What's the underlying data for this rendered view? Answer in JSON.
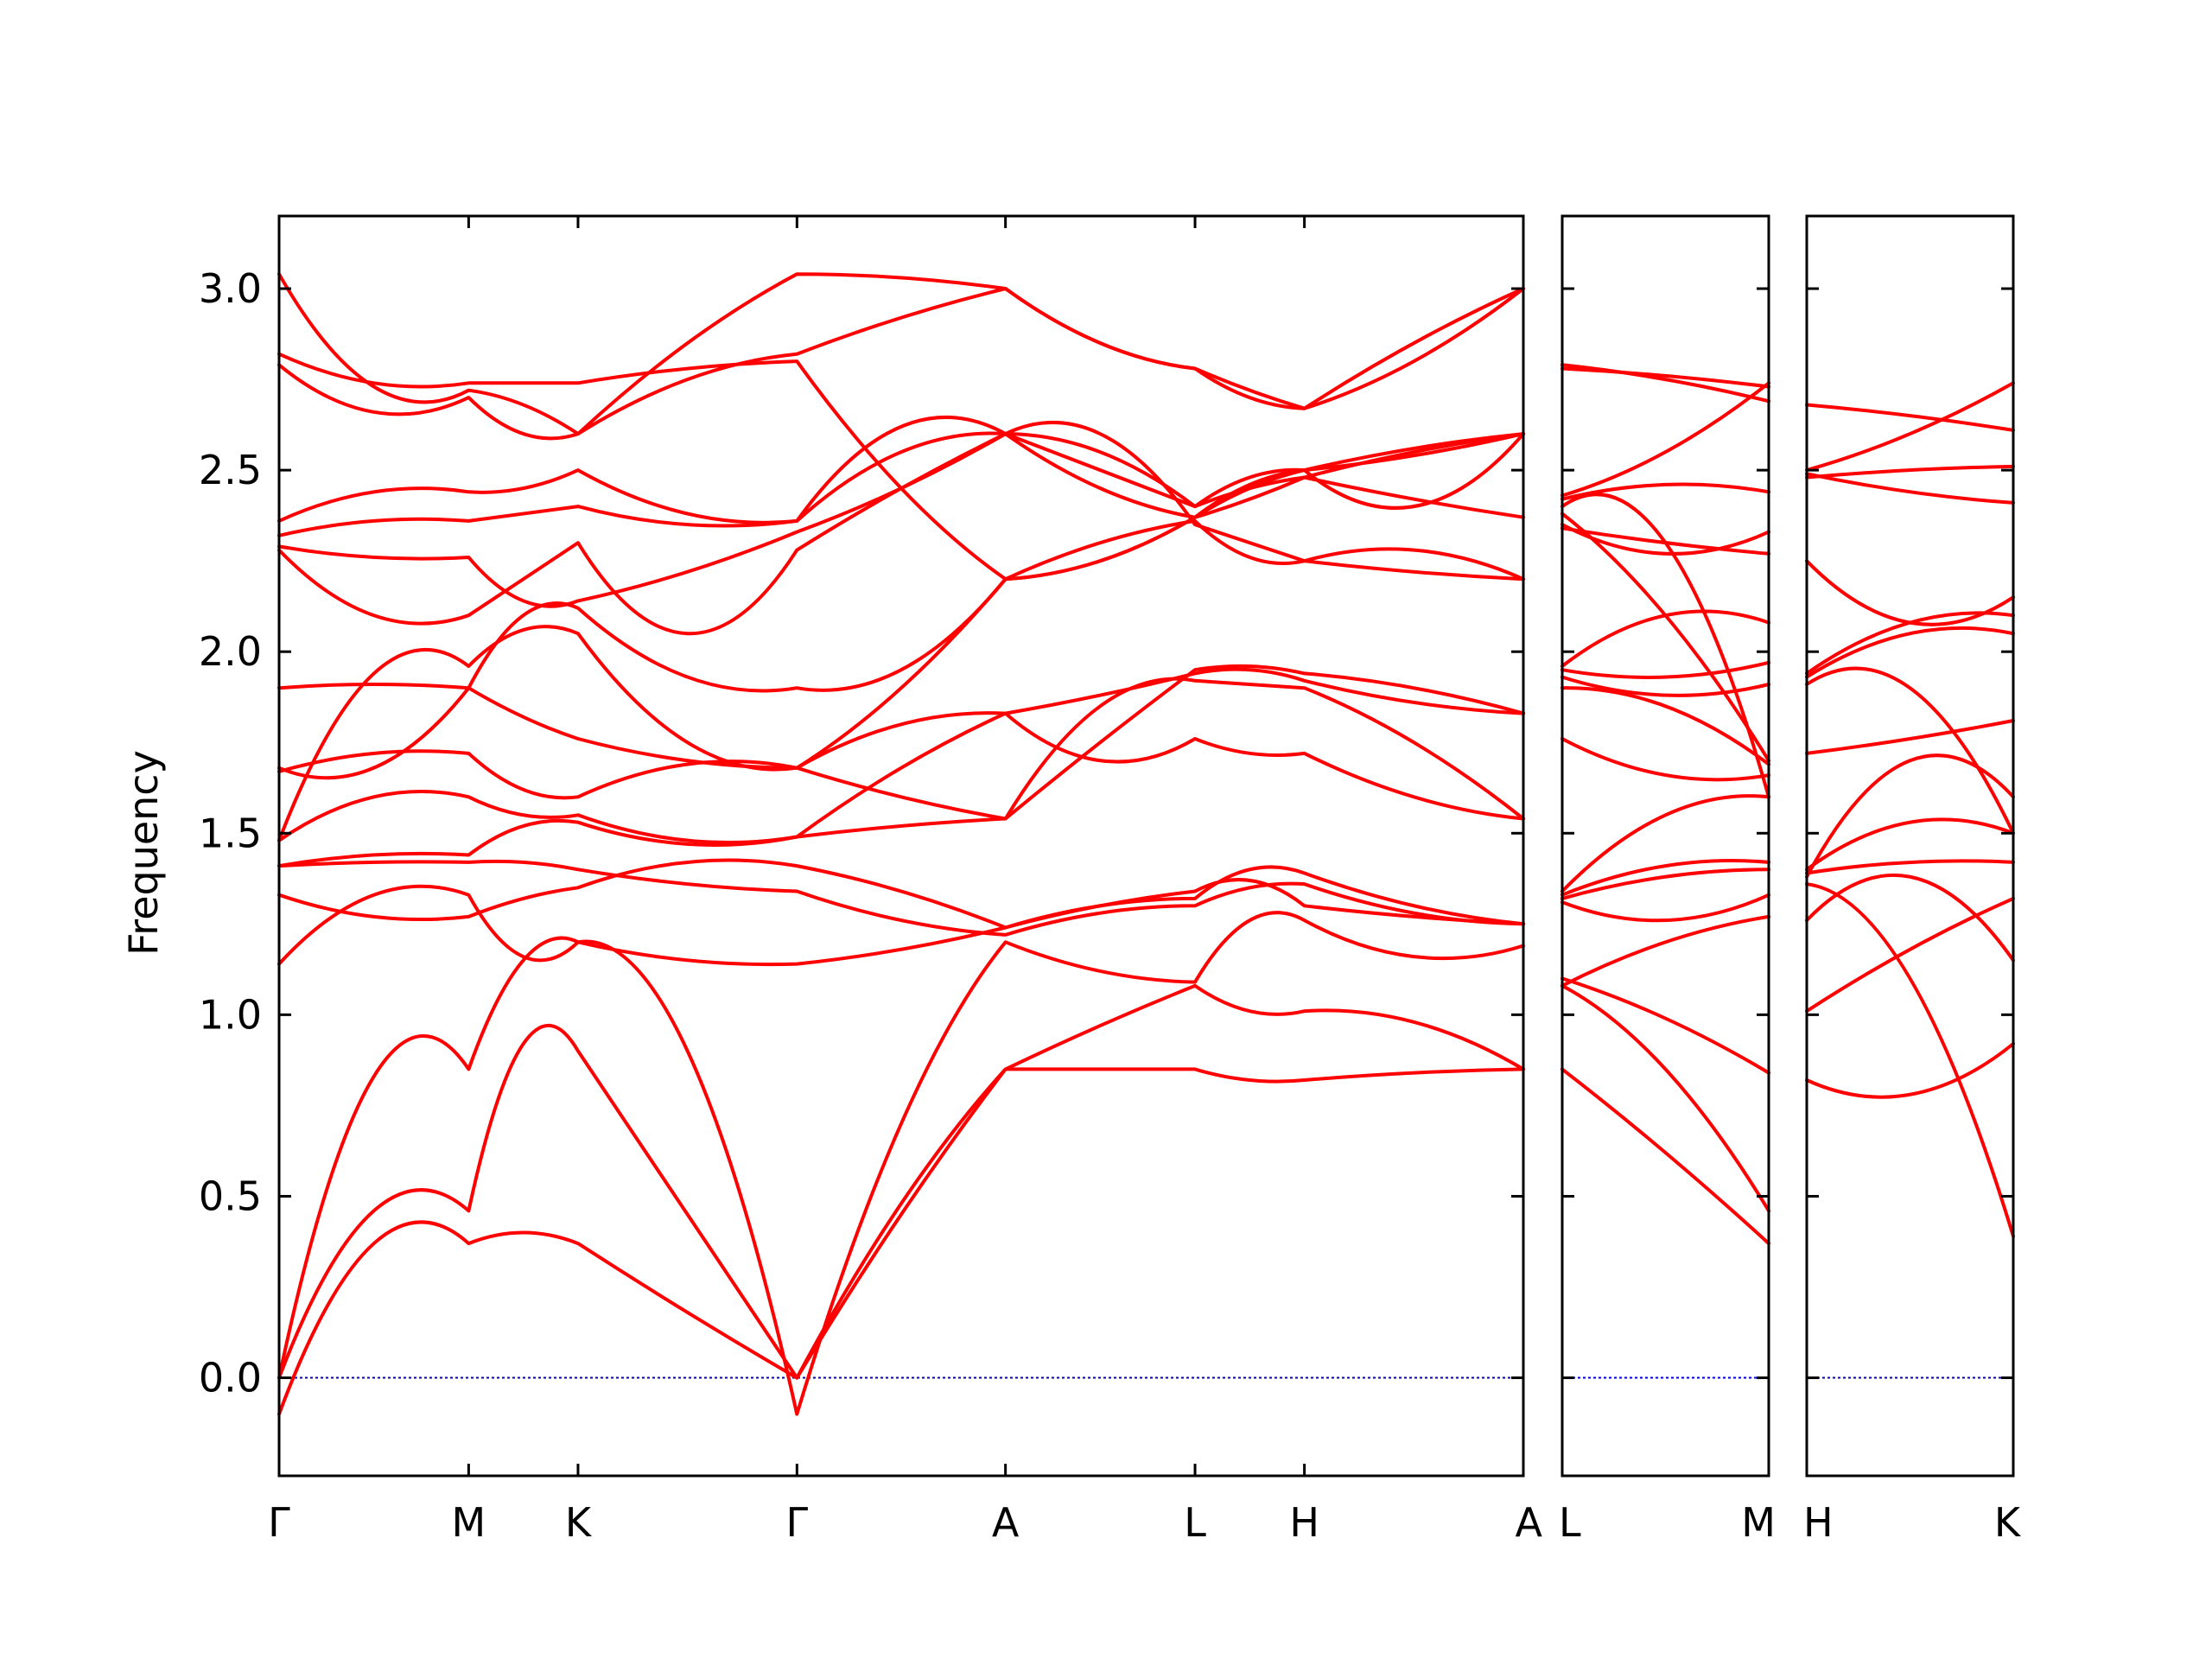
{
  "chart_data": {
    "type": "line",
    "title": "",
    "ylabel": "Frequency",
    "xlabel": "",
    "ylim": [
      -0.27,
      3.2
    ],
    "yticks": [
      0.0,
      0.5,
      1.0,
      1.5,
      2.0,
      2.5,
      3.0
    ],
    "ytick_labels": [
      "0.0",
      "0.5",
      "1.0",
      "1.5",
      "2.0",
      "2.5",
      "3.0"
    ],
    "zero_line_color": "#0000cc",
    "band_color": "#ff0000",
    "grid": false,
    "panels": [
      {
        "segments": [
          "Γ-M",
          "M-K",
          "K-Γ",
          "Γ-A",
          "A-L",
          "L-H",
          "H-A"
        ],
        "segment_lengths": [
          1.0,
          0.577,
          1.155,
          1.1,
          1.0,
          0.577,
          1.155
        ],
        "tick_labels": [
          "Γ",
          "M",
          "K",
          "Γ",
          "A",
          "L",
          "H",
          "A"
        ],
        "bands": [
          [
            [
              -0.1,
              0.37,
              0.37
            ],
            [
              0.37,
              0.4,
              0.37
            ],
            [
              0.37,
              0.18,
              0.0
            ],
            [
              0.0,
              0.45,
              0.85
            ],
            [
              0.85,
              0.85,
              0.85
            ],
            [
              0.85,
              0.82,
              0.82
            ],
            [
              0.82,
              0.84,
              0.85
            ]
          ],
          [
            [
              0.0,
              0.46,
              0.46
            ],
            [
              0.46,
              0.92,
              0.9
            ],
            [
              0.9,
              0.45,
              0.0
            ],
            [
              0.0,
              0.48,
              0.85
            ],
            [
              0.85,
              0.97,
              1.08
            ],
            [
              1.08,
              1.01,
              1.01
            ],
            [
              1.01,
              0.98,
              0.85
            ]
          ],
          [
            [
              0.0,
              0.83,
              0.85
            ],
            [
              0.85,
              1.15,
              1.2
            ],
            [
              1.2,
              0.9,
              -0.1
            ],
            [
              -0.1,
              0.7,
              1.2
            ],
            [
              1.2,
              1.12,
              1.09
            ],
            [
              1.09,
              1.26,
              1.26
            ],
            [
              1.26,
              1.16,
              1.19
            ]
          ],
          [
            [
              1.14,
              1.33,
              1.33
            ],
            [
              1.33,
              1.16,
              1.2
            ],
            [
              1.2,
              1.15,
              1.14
            ],
            [
              1.14,
              1.18,
              1.24
            ],
            [
              1.24,
              1.3,
              1.34
            ],
            [
              1.34,
              1.37,
              1.3
            ],
            [
              1.3,
              1.27,
              1.25
            ]
          ],
          [
            [
              1.33,
              1.27,
              1.27
            ],
            [
              1.27,
              1.32,
              1.35
            ],
            [
              1.35,
              1.42,
              1.41
            ],
            [
              1.41,
              1.34,
              1.24
            ],
            [
              1.24,
              1.3,
              1.32
            ],
            [
              1.32,
              1.4,
              1.39
            ],
            [
              1.39,
              1.3,
              1.25
            ]
          ],
          [
            [
              1.41,
              1.42,
              1.42
            ],
            [
              1.42,
              1.42,
              1.4
            ],
            [
              1.4,
              1.36,
              1.34
            ],
            [
              1.34,
              1.26,
              1.22
            ],
            [
              1.22,
              1.28,
              1.3
            ],
            [
              1.3,
              1.35,
              1.36
            ],
            [
              1.36,
              1.28,
              1.25
            ]
          ],
          [
            [
              1.41,
              1.44,
              1.44
            ],
            [
              1.44,
              1.52,
              1.53
            ],
            [
              1.53,
              1.47,
              1.49
            ],
            [
              1.49,
              1.52,
              1.54
            ],
            [
              1.54,
              1.85,
              1.92
            ],
            [
              1.92,
              1.91,
              1.9
            ],
            [
              1.9,
              1.75,
              1.54
            ]
          ],
          [
            [
              1.48,
              1.6,
              1.6
            ],
            [
              1.6,
              1.55,
              1.55
            ],
            [
              1.55,
              1.48,
              1.49
            ],
            [
              1.49,
              1.68,
              1.83
            ],
            [
              1.83,
              1.88,
              1.94
            ],
            [
              1.94,
              1.95,
              1.92
            ],
            [
              1.92,
              1.86,
              1.83
            ]
          ],
          [
            [
              1.48,
              1.94,
              1.96
            ],
            [
              1.96,
              2.06,
              2.05
            ],
            [
              2.05,
              1.75,
              1.68
            ],
            [
              1.68,
              1.8,
              1.83
            ],
            [
              1.83,
              1.7,
              1.76
            ],
            [
              1.76,
              1.72,
              1.72
            ],
            [
              1.72,
              1.6,
              1.54
            ]
          ],
          [
            [
              1.67,
              1.72,
              1.72
            ],
            [
              1.72,
              1.62,
              1.6
            ],
            [
              1.6,
              1.69,
              1.68
            ],
            [
              1.68,
              1.9,
              2.2
            ],
            [
              2.2,
              2.3,
              2.36
            ],
            [
              2.36,
              2.26,
              2.25
            ],
            [
              2.25,
              2.22,
              2.2
            ]
          ],
          [
            [
              1.68,
              1.68,
              1.9
            ],
            [
              1.9,
              1.82,
              1.76
            ],
            [
              1.76,
              1.7,
              1.68
            ],
            [
              1.68,
              1.6,
              1.54
            ],
            [
              1.54,
              1.75,
              1.95
            ],
            [
              1.95,
              1.96,
              1.94
            ],
            [
              1.94,
              1.9,
              1.83
            ]
          ],
          [
            [
              1.9,
              1.91,
              1.9
            ],
            [
              1.9,
              2.1,
              2.12
            ],
            [
              2.12,
              1.93,
              1.9
            ],
            [
              1.9,
              1.95,
              2.2
            ],
            [
              2.2,
              2.25,
              2.37
            ],
            [
              2.37,
              2.45,
              2.5
            ],
            [
              2.5,
              2.54,
              2.6
            ]
          ],
          [
            [
              2.28,
              2.1,
              2.1
            ],
            [
              2.1,
              2.2,
              2.3
            ],
            [
              2.3,
              2.05,
              2.28
            ],
            [
              2.28,
              2.45,
              2.6
            ],
            [
              2.6,
              2.55,
              2.4
            ],
            [
              2.4,
              2.48,
              2.5
            ],
            [
              2.5,
              2.56,
              2.6
            ]
          ],
          [
            [
              2.29,
              2.26,
              2.26
            ],
            [
              2.26,
              2.14,
              2.14
            ],
            [
              2.14,
              2.22,
              2.33
            ],
            [
              2.33,
              2.45,
              2.6
            ],
            [
              2.6,
              2.6,
              2.35
            ],
            [
              2.35,
              2.3,
              2.25
            ],
            [
              2.25,
              2.28,
              2.2
            ]
          ],
          [
            [
              2.32,
              2.36,
              2.36
            ],
            [
              2.36,
              2.38,
              2.4
            ],
            [
              2.4,
              2.35,
              2.36
            ],
            [
              2.36,
              2.55,
              2.6
            ],
            [
              2.6,
              2.45,
              2.37
            ],
            [
              2.37,
              2.46,
              2.5
            ],
            [
              2.5,
              2.4,
              2.6
            ]
          ],
          [
            [
              2.36,
              2.44,
              2.44
            ],
            [
              2.44,
              2.45,
              2.5
            ],
            [
              2.5,
              2.38,
              2.36
            ],
            [
              2.36,
              2.62,
              2.6
            ],
            [
              2.6,
              2.5,
              2.4
            ],
            [
              2.4,
              2.45,
              2.48
            ],
            [
              2.48,
              2.42,
              2.37
            ]
          ],
          [
            [
              2.79,
              2.66,
              2.7
            ],
            [
              2.7,
              2.6,
              2.6
            ],
            [
              2.6,
              2.75,
              2.82
            ],
            [
              2.82,
              2.92,
              3.0
            ],
            [
              3.0,
              2.85,
              2.78
            ],
            [
              2.78,
              2.7,
              2.67
            ],
            [
              2.67,
              2.85,
              3.0
            ]
          ],
          [
            [
              2.82,
              2.74,
              2.74
            ],
            [
              2.74,
              2.74,
              2.74
            ],
            [
              2.74,
              2.78,
              2.8
            ],
            [
              2.8,
              2.45,
              2.2
            ],
            [
              2.2,
              2.25,
              2.37
            ],
            [
              2.37,
              2.42,
              2.48
            ],
            [
              2.48,
              2.55,
              2.6
            ]
          ],
          [
            [
              3.04,
              2.73,
              2.72
            ],
            [
              2.72,
              2.68,
              2.6
            ],
            [
              2.6,
              2.85,
              3.04
            ],
            [
              3.04,
              3.03,
              3.0
            ],
            [
              3.0,
              2.85,
              2.78
            ],
            [
              2.78,
              2.72,
              2.67
            ],
            [
              2.67,
              2.8,
              3.0
            ]
          ]
        ]
      },
      {
        "segments": [
          "L-M"
        ],
        "segment_lengths": [
          1.0
        ],
        "tick_labels": [
          "L",
          "M"
        ],
        "bands": [
          [
            [
              0.85,
              0.62,
              0.37
            ]
          ],
          [
            [
              1.08,
              0.85,
              0.46
            ]
          ],
          [
            [
              1.1,
              0.99,
              0.84
            ]
          ],
          [
            [
              1.08,
              1.2,
              1.27
            ]
          ],
          [
            [
              1.31,
              1.26,
              1.33
            ]
          ],
          [
            [
              1.32,
              1.38,
              1.4
            ]
          ],
          [
            [
              1.33,
              1.41,
              1.42
            ]
          ],
          [
            [
              1.34,
              1.55,
              1.6
            ]
          ],
          [
            [
              1.76,
              1.66,
              1.66
            ]
          ],
          [
            [
              1.9,
              1.85,
              1.69
            ]
          ],
          [
            [
              1.93,
              1.88,
              1.91
            ]
          ],
          [
            [
              1.95,
              1.93,
              1.97
            ]
          ],
          [
            [
              1.96,
              2.1,
              2.08
            ]
          ],
          [
            [
              2.34,
              2.3,
              2.27
            ]
          ],
          [
            [
              2.35,
              2.27,
              2.33
            ]
          ],
          [
            [
              2.38,
              2.1,
              1.7
            ]
          ],
          [
            [
              2.4,
              2.3,
              1.6
            ]
          ],
          [
            [
              2.42,
              2.46,
              2.44
            ]
          ],
          [
            [
              2.78,
              2.76,
              2.73
            ]
          ],
          [
            [
              2.79,
              2.75,
              2.69
            ]
          ],
          [
            [
              2.43,
              2.55,
              2.74
            ]
          ]
        ]
      },
      {
        "segments": [
          "H-K"
        ],
        "segment_lengths": [
          1.0
        ],
        "tick_labels": [
          "H",
          "K"
        ],
        "bands": [
          [
            [
              0.82,
              0.78,
              0.92
            ]
          ],
          [
            [
              1.01,
              1.18,
              1.32
            ]
          ],
          [
            [
              1.26,
              1.38,
              1.15
            ]
          ],
          [
            [
              1.36,
              1.1,
              0.39
            ]
          ],
          [
            [
              1.39,
              1.42,
              1.42
            ]
          ],
          [
            [
              1.4,
              1.53,
              1.5
            ]
          ],
          [
            [
              1.38,
              1.7,
              1.6
            ]
          ],
          [
            [
              1.72,
              1.76,
              1.81
            ]
          ],
          [
            [
              1.91,
              1.9,
              1.5
            ]
          ],
          [
            [
              1.93,
              2.05,
              2.05
            ]
          ],
          [
            [
              1.94,
              2.08,
              2.1
            ]
          ],
          [
            [
              2.25,
              2.08,
              2.15
            ]
          ],
          [
            [
              2.48,
              2.5,
              2.51
            ]
          ],
          [
            [
              2.49,
              2.44,
              2.41
            ]
          ],
          [
            [
              2.5,
              2.6,
              2.74
            ]
          ],
          [
            [
              2.68,
              2.65,
              2.61
            ]
          ]
        ]
      }
    ]
  }
}
